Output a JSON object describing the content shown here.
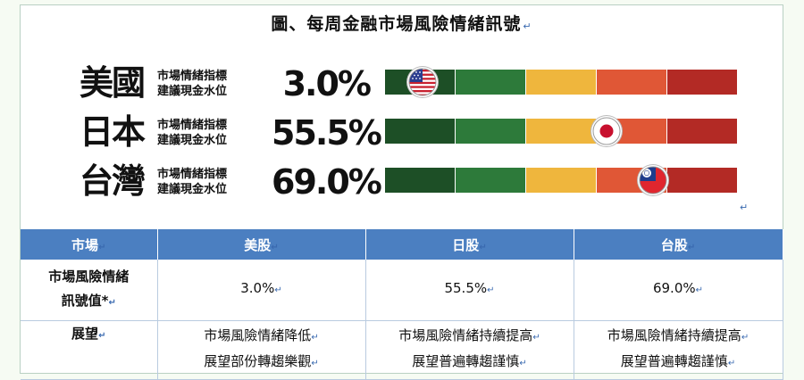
{
  "title": "圖、每周金融市場風險情緒訊號",
  "para_mark": "↵",
  "indicator": {
    "label_line1": "市場情緒指標",
    "label_line2": "建議現金水位"
  },
  "rows": [
    {
      "country": "美國",
      "value": "3.0%",
      "level_pct": 3.0,
      "flag": "us-flag-icon"
    },
    {
      "country": "日本",
      "value": "55.5%",
      "level_pct": 55.5,
      "flag": "japan-flag-icon"
    },
    {
      "country": "台灣",
      "value": "69.0%",
      "level_pct": 69.0,
      "flag": "taiwan-flag-icon"
    }
  ],
  "colors": {
    "seg": [
      "#1d4f26",
      "#2d7a3a",
      "#efb63d",
      "#e05736",
      "#b32a25"
    ],
    "table_header": "#4b7fc1"
  },
  "table": {
    "headers": [
      "市場",
      "美股",
      "日股",
      "台股"
    ],
    "signal_label_line1": "市場風險情緒",
    "signal_label_line2": "訊號值*",
    "signal_values": [
      "3.0%",
      "55.5%",
      "69.0%"
    ],
    "outlook_label": "展望",
    "outlook": [
      {
        "line1": "市場風險情緒降低",
        "line2": "展望部份轉趨樂觀"
      },
      {
        "line1": "市場風險情緒持續提高",
        "line2": "展望普遍轉趨謹慎"
      },
      {
        "line1": "市場風險情緒持續提高",
        "line2": "展望普遍轉趨謹慎"
      }
    ]
  }
}
